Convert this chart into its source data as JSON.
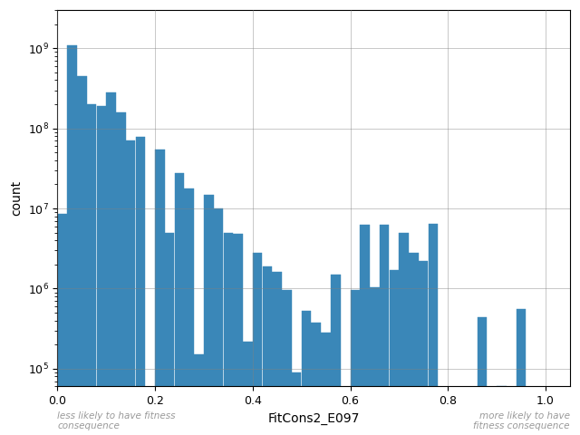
{
  "xlabel": "FitCons2_E097",
  "ylabel": "count",
  "bar_color": "#3a87b8",
  "xlim": [
    0.0,
    1.05
  ],
  "ylim_log": [
    60000.0,
    3000000000.0
  ],
  "annotation_left": "less likely to have fitness\nconsequence",
  "annotation_right": "more likely to have\nfitness consequence",
  "annotation_color": "#999999",
  "bin_edges": [
    0.0,
    0.02,
    0.04,
    0.06,
    0.08,
    0.1,
    0.12,
    0.14,
    0.16,
    0.18,
    0.2,
    0.22,
    0.24,
    0.26,
    0.28,
    0.3,
    0.32,
    0.34,
    0.36,
    0.38,
    0.4,
    0.42,
    0.44,
    0.46,
    0.48,
    0.5,
    0.52,
    0.54,
    0.56,
    0.58,
    0.6,
    0.62,
    0.64,
    0.66,
    0.68,
    0.7,
    0.72,
    0.74,
    0.76,
    0.78,
    0.8,
    0.82,
    0.84,
    0.86,
    0.88,
    0.9,
    0.92,
    0.94,
    0.96,
    0.98,
    1.0
  ],
  "counts": [
    8500000,
    1100000000,
    450000000,
    200000000,
    190000000,
    280000000,
    160000000,
    70000000,
    78000000,
    0,
    55000000,
    5000000,
    28000000,
    18000000,
    150000,
    15000000,
    10000000,
    5000000,
    4800000,
    220000,
    2800000,
    1900000,
    1600000,
    950000,
    90000,
    530000,
    380000,
    280000,
    1500000,
    0,
    950000,
    6200000,
    1050000,
    6300000,
    1700000,
    5000000,
    2800000,
    2200000,
    6500000,
    0,
    0,
    0,
    0,
    440000,
    0,
    60000,
    58000,
    560000,
    0,
    0
  ]
}
